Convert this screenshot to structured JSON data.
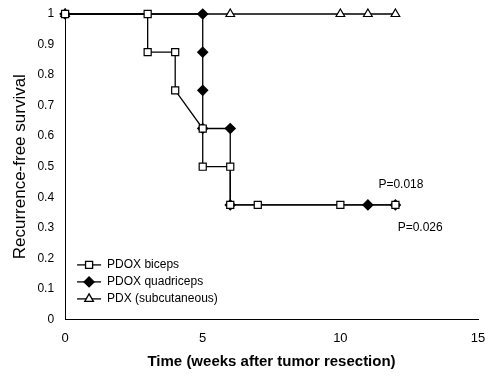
{
  "chart_data": {
    "type": "line",
    "y_label": "Recurrence-free survival",
    "x_label": "Time (weeks after tumor resection)",
    "xlim": [
      0,
      15
    ],
    "xticks": [
      0,
      5,
      10,
      15
    ],
    "ylim": [
      0,
      1
    ],
    "yticks": [
      0,
      0.1,
      0.2,
      0.3,
      0.4,
      0.5,
      0.6,
      0.7,
      0.8,
      0.9,
      1
    ],
    "grid": false,
    "legend": "lower left",
    "series": [
      {
        "name": "PDOX biceps",
        "color": "#000000",
        "marker": "open_square",
        "line_style": "solid",
        "x": [
          0,
          3,
          3,
          4,
          4,
          5,
          5,
          6,
          6,
          7,
          10,
          12
        ],
        "values": [
          1,
          1,
          0.875,
          0.875,
          0.75,
          0.625,
          0.5,
          0.5,
          0.375,
          0.375,
          0.375,
          0.375
        ]
      },
      {
        "name": "PDOX quadriceps",
        "color": "#000000",
        "marker": "filled_diamond",
        "line_style": "solid",
        "x": [
          0,
          5,
          5,
          5,
          5,
          6,
          6,
          11,
          12
        ],
        "values": [
          1,
          1,
          0.875,
          0.75,
          0.625,
          0.625,
          0.375,
          0.375,
          0.375
        ]
      },
      {
        "name": "PDX (subcutaneous)",
        "color": "#000000",
        "marker": "open_triangle",
        "line_style": "solid",
        "x": [
          0,
          6,
          10,
          11,
          12
        ],
        "values": [
          1,
          1,
          1,
          1,
          1
        ]
      }
    ],
    "annotations": [
      {
        "text": "P=0.018",
        "x": 12.2,
        "y": 0.44
      },
      {
        "text": "P=0.026",
        "x": 12.9,
        "y": 0.3
      }
    ]
  }
}
